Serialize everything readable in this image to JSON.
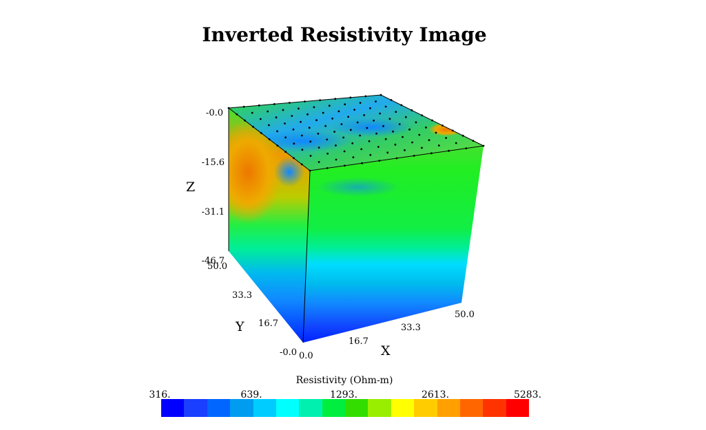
{
  "chart_data": {
    "type": "heatmap",
    "title": "Inverted Resistivity Image",
    "axes": {
      "x": {
        "label": "X",
        "ticks": [
          "-0.0",
          "0.0",
          "16.7",
          "33.3",
          "50.0"
        ]
      },
      "y": {
        "label": "Y",
        "ticks": [
          "16.7",
          "33.3",
          "50.0"
        ]
      },
      "z": {
        "label": "Z",
        "ticks": [
          "-0.0",
          "-15.6",
          "-31.1",
          "-46.7"
        ]
      }
    },
    "colorbar": {
      "label": "Resistivity (Ohm-m)",
      "ticks": [
        "316.",
        "639.",
        "1293.",
        "2613.",
        "5283."
      ],
      "colors": [
        "#0000ff",
        "#1a3fff",
        "#0066ff",
        "#009cf0",
        "#00ccff",
        "#00ffff",
        "#00f0b0",
        "#00ee40",
        "#33dd00",
        "#99ee00",
        "#ffff00",
        "#ffcc00",
        "#ffa000",
        "#ff6600",
        "#ff3300",
        "#ff0000"
      ]
    }
  }
}
